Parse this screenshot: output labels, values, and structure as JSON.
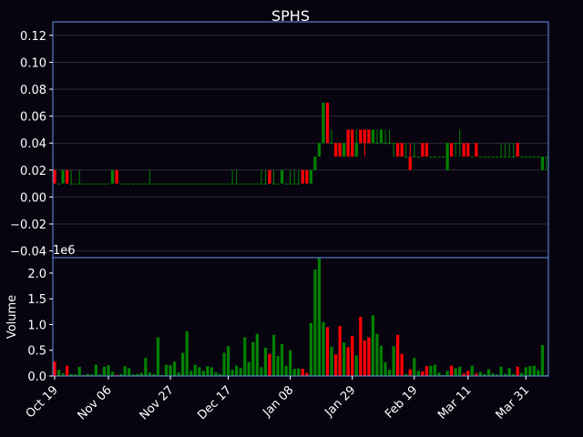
{
  "chart_data": {
    "type": "candlestick",
    "title": "SPHS",
    "panels": [
      {
        "id": "price",
        "yticks": [
          "0.12",
          "0.10",
          "0.08",
          "0.06",
          "0.04",
          "0.02",
          "0.00",
          "−0.02",
          "−0.04"
        ],
        "ylim": [
          -0.045,
          0.13
        ],
        "grid": true
      },
      {
        "id": "volume",
        "ylabel": "Volume",
        "scale_note": "1e6",
        "yticks": [
          "2.0",
          "1.5",
          "1.0",
          "0.5",
          "0.0"
        ],
        "ylim": [
          0,
          2.3
        ]
      }
    ],
    "x_tick_labels": [
      "Oct 19",
      "Nov 06",
      "Nov 27",
      "Dec 17",
      "Jan 08",
      "Jan 29",
      "Feb 19",
      "Mar 11",
      "Mar 31"
    ],
    "x_tick_sessions": [
      0,
      13,
      28,
      42,
      57,
      72,
      87,
      100,
      114
    ],
    "colors": {
      "up": "#008000",
      "down": "#ff0000",
      "axis": "#6495ed",
      "background": "#07040f",
      "text": "#ffffff",
      "grid": "#2e2e3a"
    },
    "price_unit_step": 0.01,
    "note": "ohlc values in price units (multiples of 0.01); volume in millions",
    "ohlc": [
      [
        0.02,
        0.02,
        0.01,
        0.01
      ],
      [
        0.01,
        0.01,
        0.01,
        0.01
      ],
      [
        0.01,
        0.02,
        0.01,
        0.02
      ],
      [
        0.02,
        0.02,
        0.01,
        0.01
      ],
      [
        0.01,
        0.02,
        0.01,
        0.01
      ],
      [
        0.01,
        0.01,
        0.01,
        0.01
      ],
      [
        0.01,
        0.02,
        0.01,
        0.01
      ],
      [
        0.01,
        0.01,
        0.01,
        0.01
      ],
      [
        0.01,
        0.01,
        0.01,
        0.01
      ],
      [
        0.01,
        0.01,
        0.01,
        0.01
      ],
      [
        0.01,
        0.01,
        0.01,
        0.01
      ],
      [
        0.01,
        0.01,
        0.01,
        0.01
      ],
      [
        0.01,
        0.01,
        0.01,
        0.01
      ],
      [
        0.01,
        0.01,
        0.01,
        0.01
      ],
      [
        0.01,
        0.02,
        0.01,
        0.02
      ],
      [
        0.02,
        0.02,
        0.01,
        0.01
      ],
      [
        0.01,
        0.01,
        0.01,
        0.01
      ],
      [
        0.01,
        0.01,
        0.01,
        0.01
      ],
      [
        0.01,
        0.01,
        0.01,
        0.01
      ],
      [
        0.01,
        0.01,
        0.01,
        0.01
      ],
      [
        0.01,
        0.01,
        0.01,
        0.01
      ],
      [
        0.01,
        0.01,
        0.01,
        0.01
      ],
      [
        0.01,
        0.01,
        0.01,
        0.01
      ],
      [
        0.01,
        0.02,
        0.01,
        0.01
      ],
      [
        0.01,
        0.01,
        0.01,
        0.01
      ],
      [
        0.01,
        0.01,
        0.01,
        0.01
      ],
      [
        0.01,
        0.01,
        0.01,
        0.01
      ],
      [
        0.01,
        0.01,
        0.01,
        0.01
      ],
      [
        0.01,
        0.01,
        0.01,
        0.01
      ],
      [
        0.01,
        0.01,
        0.01,
        0.01
      ],
      [
        0.01,
        0.01,
        0.01,
        0.01
      ],
      [
        0.01,
        0.01,
        0.01,
        0.01
      ],
      [
        0.01,
        0.01,
        0.01,
        0.01
      ],
      [
        0.01,
        0.01,
        0.01,
        0.01
      ],
      [
        0.01,
        0.01,
        0.01,
        0.01
      ],
      [
        0.01,
        0.01,
        0.01,
        0.01
      ],
      [
        0.01,
        0.01,
        0.01,
        0.01
      ],
      [
        0.01,
        0.01,
        0.01,
        0.01
      ],
      [
        0.01,
        0.01,
        0.01,
        0.01
      ],
      [
        0.01,
        0.01,
        0.01,
        0.01
      ],
      [
        0.01,
        0.01,
        0.01,
        0.01
      ],
      [
        0.01,
        0.01,
        0.01,
        0.01
      ],
      [
        0.01,
        0.01,
        0.01,
        0.01
      ],
      [
        0.01,
        0.02,
        0.01,
        0.01
      ],
      [
        0.01,
        0.02,
        0.01,
        0.01
      ],
      [
        0.01,
        0.01,
        0.01,
        0.01
      ],
      [
        0.01,
        0.01,
        0.01,
        0.01
      ],
      [
        0.01,
        0.01,
        0.01,
        0.01
      ],
      [
        0.01,
        0.01,
        0.01,
        0.01
      ],
      [
        0.01,
        0.01,
        0.01,
        0.01
      ],
      [
        0.01,
        0.02,
        0.01,
        0.01
      ],
      [
        0.01,
        0.02,
        0.01,
        0.01
      ],
      [
        0.02,
        0.02,
        0.01,
        0.01
      ],
      [
        0.01,
        0.02,
        0.01,
        0.01
      ],
      [
        0.01,
        0.01,
        0.01,
        0.01
      ],
      [
        0.01,
        0.02,
        0.01,
        0.02
      ],
      [
        0.01,
        0.01,
        0.01,
        0.01
      ],
      [
        0.01,
        0.02,
        0.01,
        0.01
      ],
      [
        0.01,
        0.02,
        0.01,
        0.01
      ],
      [
        0.01,
        0.02,
        0.01,
        0.01
      ],
      [
        0.02,
        0.02,
        0.01,
        0.01
      ],
      [
        0.02,
        0.02,
        0.01,
        0.01
      ],
      [
        0.01,
        0.02,
        0.01,
        0.02
      ],
      [
        0.02,
        0.03,
        0.02,
        0.03
      ],
      [
        0.03,
        0.04,
        0.03,
        0.04
      ],
      [
        0.04,
        0.07,
        0.04,
        0.07
      ],
      [
        0.07,
        0.07,
        0.04,
        0.04
      ],
      [
        0.04,
        0.05,
        0.04,
        0.04
      ],
      [
        0.04,
        0.04,
        0.03,
        0.03
      ],
      [
        0.04,
        0.04,
        0.03,
        0.03
      ],
      [
        0.03,
        0.04,
        0.03,
        0.04
      ],
      [
        0.05,
        0.05,
        0.03,
        0.03
      ],
      [
        0.05,
        0.05,
        0.03,
        0.03
      ],
      [
        0.03,
        0.05,
        0.03,
        0.04
      ],
      [
        0.05,
        0.05,
        0.04,
        0.04
      ],
      [
        0.05,
        0.05,
        0.03,
        0.04
      ],
      [
        0.05,
        0.05,
        0.04,
        0.04
      ],
      [
        0.04,
        0.05,
        0.04,
        0.05
      ],
      [
        0.04,
        0.05,
        0.04,
        0.04
      ],
      [
        0.04,
        0.05,
        0.04,
        0.05
      ],
      [
        0.04,
        0.05,
        0.04,
        0.04
      ],
      [
        0.04,
        0.05,
        0.04,
        0.04
      ],
      [
        0.04,
        0.04,
        0.03,
        0.04
      ],
      [
        0.04,
        0.04,
        0.03,
        0.03
      ],
      [
        0.04,
        0.04,
        0.03,
        0.03
      ],
      [
        0.03,
        0.04,
        0.03,
        0.03
      ],
      [
        0.03,
        0.04,
        0.02,
        0.02
      ],
      [
        0.03,
        0.04,
        0.03,
        0.03
      ],
      [
        0.03,
        0.03,
        0.03,
        0.03
      ],
      [
        0.04,
        0.04,
        0.03,
        0.03
      ],
      [
        0.04,
        0.04,
        0.03,
        0.03
      ],
      [
        0.03,
        0.03,
        0.03,
        0.03
      ],
      [
        0.03,
        0.03,
        0.03,
        0.03
      ],
      [
        0.03,
        0.03,
        0.03,
        0.03
      ],
      [
        0.03,
        0.03,
        0.03,
        0.03
      ],
      [
        0.02,
        0.04,
        0.02,
        0.04
      ],
      [
        0.04,
        0.04,
        0.03,
        0.03
      ],
      [
        0.04,
        0.04,
        0.03,
        0.04
      ],
      [
        0.04,
        0.05,
        0.03,
        0.04
      ],
      [
        0.04,
        0.04,
        0.03,
        0.03
      ],
      [
        0.04,
        0.04,
        0.03,
        0.03
      ],
      [
        0.03,
        0.03,
        0.03,
        0.03
      ],
      [
        0.04,
        0.04,
        0.03,
        0.03
      ],
      [
        0.03,
        0.03,
        0.03,
        0.03
      ],
      [
        0.03,
        0.03,
        0.03,
        0.03
      ],
      [
        0.03,
        0.03,
        0.03,
        0.03
      ],
      [
        0.03,
        0.03,
        0.03,
        0.03
      ],
      [
        0.03,
        0.03,
        0.03,
        0.03
      ],
      [
        0.03,
        0.04,
        0.03,
        0.03
      ],
      [
        0.03,
        0.04,
        0.03,
        0.03
      ],
      [
        0.03,
        0.04,
        0.03,
        0.03
      ],
      [
        0.03,
        0.04,
        0.03,
        0.03
      ],
      [
        0.04,
        0.04,
        0.03,
        0.03
      ],
      [
        0.03,
        0.03,
        0.03,
        0.03
      ],
      [
        0.03,
        0.03,
        0.03,
        0.03
      ],
      [
        0.03,
        0.03,
        0.03,
        0.03
      ],
      [
        0.03,
        0.03,
        0.03,
        0.03
      ],
      [
        0.03,
        0.03,
        0.03,
        0.03
      ],
      [
        0.02,
        0.03,
        0.02,
        0.03
      ],
      [
        0.03,
        0.03,
        0.02,
        0.03
      ]
    ],
    "volume": [
      0.28,
      0.12,
      0.05,
      0.2,
      0.04,
      0.03,
      0.18,
      0.02,
      0.04,
      0.03,
      0.22,
      0.03,
      0.18,
      0.21,
      0.08,
      0.02,
      0.04,
      0.19,
      0.15,
      0.03,
      0.04,
      0.06,
      0.35,
      0.07,
      0.04,
      0.75,
      0.02,
      0.22,
      0.21,
      0.28,
      0.07,
      0.45,
      0.87,
      0.1,
      0.22,
      0.17,
      0.1,
      0.19,
      0.17,
      0.07,
      0.04,
      0.45,
      0.58,
      0.12,
      0.2,
      0.15,
      0.75,
      0.27,
      0.66,
      0.82,
      0.17,
      0.55,
      0.43,
      0.8,
      0.39,
      0.62,
      0.2,
      0.5,
      0.14,
      0.15,
      0.14,
      0.06,
      1.03,
      2.07,
      2.3,
      1.05,
      0.95,
      0.57,
      0.42,
      0.97,
      0.65,
      0.56,
      0.78,
      0.4,
      1.15,
      0.69,
      0.75,
      1.18,
      0.82,
      0.59,
      0.27,
      0.12,
      0.58,
      0.8,
      0.43,
      0.04,
      0.13,
      0.35,
      0.1,
      0.09,
      0.19,
      0.2,
      0.22,
      0.07,
      0.02,
      0.1,
      0.2,
      0.15,
      0.18,
      0.05,
      0.1,
      0.2,
      0.05,
      0.08,
      0.04,
      0.13,
      0.05,
      0.03,
      0.18,
      0.04,
      0.15,
      0.04,
      0.18,
      0.06,
      0.17,
      0.19,
      0.2,
      0.11,
      0.6,
      0.02
    ]
  }
}
